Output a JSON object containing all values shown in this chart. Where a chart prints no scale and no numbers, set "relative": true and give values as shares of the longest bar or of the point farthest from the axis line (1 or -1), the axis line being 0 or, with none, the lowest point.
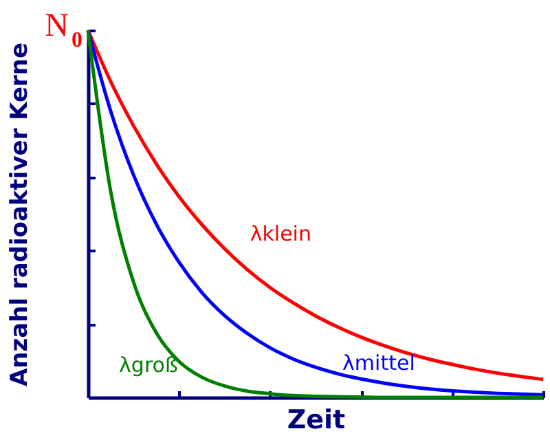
{
  "chart_data": {
    "type": "line",
    "relative": true,
    "xlabel": "Zeit",
    "ylabel": "Anzahl radioaktiver Kerne",
    "annotations": [
      "N$_{0}$"
    ],
    "categories": [
      null,
      null,
      null,
      null,
      null,
      null,
      null,
      null,
      null,
      null,
      null,
      null,
      null,
      null,
      null,
      null,
      null,
      null,
      null,
      null,
      null
    ],
    "series": [
      {
        "name": "λklein",
        "color": "#ff0000",
        "values": [
          1,
          0.86,
          0.74,
          0.636,
          0.547,
          0.471,
          0.405,
          0.348,
          0.299,
          0.258,
          0.222,
          0.191,
          0.164,
          0.141,
          0.121,
          0.104,
          0.09,
          0.077,
          0.066,
          0.057,
          0.049
        ]
      },
      {
        "name": "λmittel",
        "color": "#0000ff",
        "values": [
          1,
          0.779,
          0.606,
          0.472,
          0.368,
          0.286,
          0.223,
          0.174,
          0.135,
          0.105,
          0.082,
          0.064,
          0.05,
          0.039,
          0.03,
          0.023,
          0.018,
          0.014,
          0.011,
          0.009,
          0.007
        ]
      },
      {
        "name": "λgroß",
        "color": "#008000",
        "values": [
          1,
          0.56,
          0.314,
          0.176,
          0.098,
          0.055,
          0.031,
          0.017,
          0.01,
          0.005,
          0.003,
          0.002,
          0.001,
          0,
          0,
          0,
          0,
          0,
          0,
          0,
          0
        ]
      }
    ]
  }
}
